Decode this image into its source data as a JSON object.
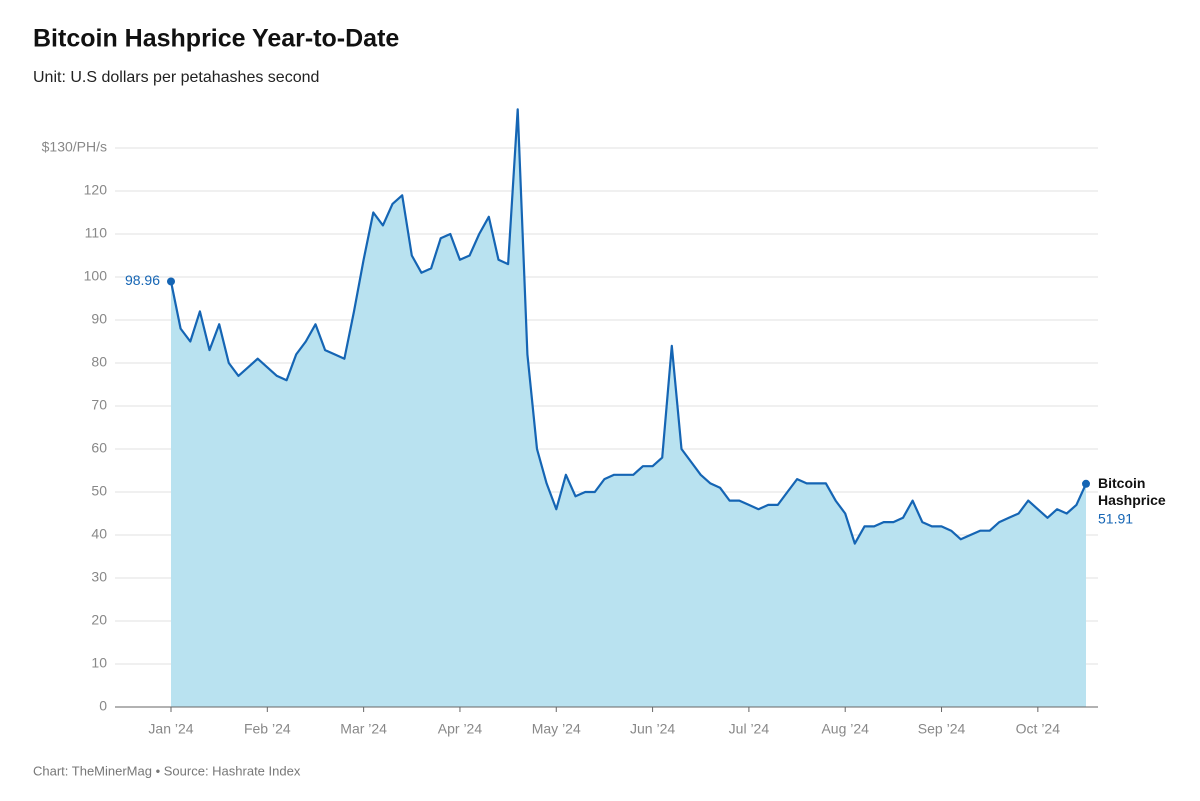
{
  "chart_data": {
    "type": "area",
    "title": "Bitcoin Hashprice Year-to-Date",
    "subtitle": "Unit: U.S dollars per petahashes second",
    "source": "Chart: TheMinerMag • Source: Hashrate Index",
    "categories": [
      "Jan ’24",
      null,
      null,
      null,
      null,
      null,
      null,
      null,
      null,
      null,
      "Feb ’24",
      null,
      null,
      null,
      null,
      null,
      null,
      null,
      null,
      null,
      "Mar ’24",
      null,
      null,
      null,
      null,
      null,
      null,
      null,
      null,
      null,
      "Apr ’24",
      null,
      null,
      null,
      null,
      null,
      null,
      null,
      null,
      null,
      "May ’24",
      null,
      null,
      null,
      null,
      null,
      null,
      null,
      null,
      null,
      "Jun ’24",
      null,
      null,
      null,
      null,
      null,
      null,
      null,
      null,
      null,
      "Jul ’24",
      null,
      null,
      null,
      null,
      null,
      null,
      null,
      null,
      null,
      "Aug ’24",
      null,
      null,
      null,
      null,
      null,
      null,
      null,
      null,
      null,
      "Sep ’24",
      null,
      null,
      null,
      null,
      null,
      null,
      null,
      null,
      null,
      "Oct ’24",
      null,
      null,
      null,
      null,
      null
    ],
    "series": [
      {
        "name": "Bitcoin Hashprice",
        "color": "#1565b4",
        "fill": "#b9e2f0",
        "values": [
          98.96,
          88,
          85,
          92,
          83,
          89,
          80,
          77,
          79,
          81,
          79,
          77,
          76,
          82,
          85,
          89,
          83,
          82,
          81,
          92,
          104,
          115,
          112,
          117,
          119,
          105,
          101,
          102,
          109,
          110,
          104,
          105,
          110,
          114,
          104,
          103,
          139,
          82,
          60,
          52,
          46,
          54,
          49,
          50,
          50,
          53,
          54,
          54,
          54,
          56,
          56,
          58,
          84,
          60,
          57,
          54,
          52,
          51,
          48,
          48,
          47,
          46,
          47,
          47,
          50,
          53,
          52,
          52,
          52,
          48,
          45,
          38,
          42,
          42,
          43,
          43,
          44,
          48,
          43,
          42,
          42,
          41,
          39,
          40,
          41,
          41,
          43,
          44,
          45,
          48,
          46,
          44,
          46,
          45,
          47,
          51.91
        ]
      }
    ],
    "ylim": [
      0,
      130
    ],
    "yticks": [
      0,
      10,
      20,
      30,
      40,
      50,
      60,
      70,
      80,
      90,
      100,
      110,
      120,
      {
        "value": 130,
        "label": "$130/PH/s"
      }
    ],
    "grid": true
  }
}
